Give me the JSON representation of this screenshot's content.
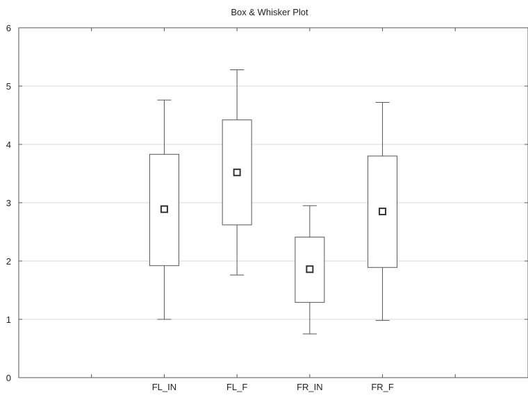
{
  "chart_data": {
    "type": "box",
    "title": "Box & Whisker Plot",
    "xlabel": "",
    "ylabel": "",
    "ylim": [
      0,
      6
    ],
    "yticks": [
      0,
      1,
      2,
      3,
      4,
      5,
      6
    ],
    "grid": true,
    "categories": [
      "FL_IN",
      "FL_F",
      "FR_IN",
      "FR_F"
    ],
    "category_slots": 7,
    "category_positions": [
      2,
      3,
      4,
      5
    ],
    "boxes": [
      {
        "label": "FL_IN",
        "whisker_low": 1.0,
        "q1": 1.92,
        "center": 2.89,
        "q3": 3.83,
        "whisker_high": 4.76
      },
      {
        "label": "FL_F",
        "whisker_low": 1.76,
        "q1": 2.62,
        "center": 3.52,
        "q3": 4.42,
        "whisker_high": 5.28
      },
      {
        "label": "FR_IN",
        "whisker_low": 0.75,
        "q1": 1.29,
        "center": 1.86,
        "q3": 2.41,
        "whisker_high": 2.95
      },
      {
        "label": "FR_F",
        "whisker_low": 0.98,
        "q1": 1.89,
        "center": 2.85,
        "q3": 3.8,
        "whisker_high": 4.72
      }
    ]
  }
}
